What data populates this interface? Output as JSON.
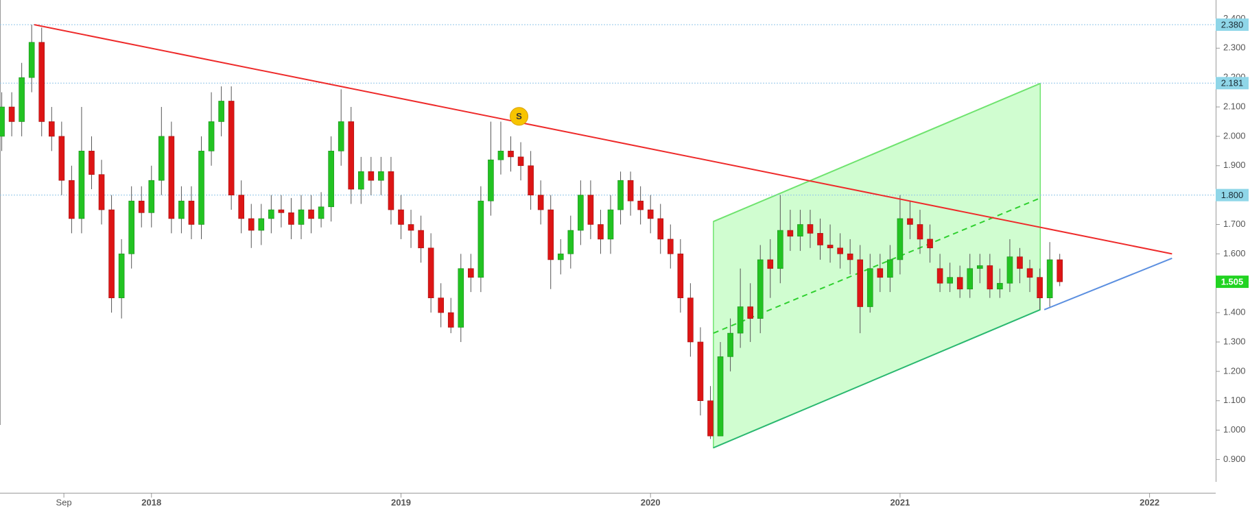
{
  "chart_data": {
    "type": "candlestick",
    "up_color": "#22c322",
    "down_color": "#dd1515",
    "xlim": [
      2017.393,
      2022.265
    ],
    "ylim": [
      0.824,
      2.464
    ],
    "xticks": [
      {
        "value": 2017.649,
        "label": "Sep"
      },
      2018,
      2019,
      2020,
      2021,
      2022
    ],
    "yticks": [
      {
        "value": 0.9,
        "label": "0.900"
      },
      {
        "value": 1.0,
        "label": "1.000"
      },
      {
        "value": 1.1,
        "label": "1.100"
      },
      {
        "value": 1.2,
        "label": "1.200"
      },
      {
        "value": 1.3,
        "label": "1.300"
      },
      {
        "value": 1.4,
        "label": "1.400"
      },
      {
        "value": 1.5,
        "label": "1.500"
      },
      {
        "value": 1.6,
        "label": "1.600"
      },
      {
        "value": 1.7,
        "label": "1.700"
      },
      {
        "value": 1.8,
        "label": "1.800"
      },
      {
        "value": 1.9,
        "label": "1.900"
      },
      {
        "value": 2.0,
        "label": "2.000"
      },
      {
        "value": 2.1,
        "label": "2.100"
      },
      {
        "value": 2.2,
        "label": "2.200"
      },
      {
        "value": 2.3,
        "label": "2.300"
      },
      {
        "value": 2.4,
        "label": "2.400"
      }
    ],
    "x": [
      2017.4,
      2017.44,
      2017.48,
      2017.52,
      2017.56,
      2017.6,
      2017.64,
      2017.68,
      2017.72,
      2017.76,
      2017.8,
      2017.84,
      2017.88,
      2017.92,
      2017.96,
      2018.0,
      2018.04,
      2018.08,
      2018.12,
      2018.16,
      2018.2,
      2018.24,
      2018.28,
      2018.32,
      2018.36,
      2018.4,
      2018.44,
      2018.48,
      2018.52,
      2018.56,
      2018.6,
      2018.64,
      2018.68,
      2018.72,
      2018.76,
      2018.8,
      2018.84,
      2018.88,
      2018.92,
      2018.96,
      2019.0,
      2019.04,
      2019.08,
      2019.12,
      2019.16,
      2019.2,
      2019.24,
      2019.28,
      2019.32,
      2019.36,
      2019.4,
      2019.44,
      2019.48,
      2019.52,
      2019.56,
      2019.6,
      2019.64,
      2019.68,
      2019.72,
      2019.76,
      2019.8,
      2019.84,
      2019.88,
      2019.92,
      2019.96,
      2020.0,
      2020.04,
      2020.08,
      2020.12,
      2020.16,
      2020.2,
      2020.24,
      2020.28,
      2020.32,
      2020.36,
      2020.4,
      2020.44,
      2020.48,
      2020.52,
      2020.56,
      2020.6,
      2020.64,
      2020.68,
      2020.72,
      2020.76,
      2020.8,
      2020.84,
      2020.88,
      2020.92,
      2020.96,
      2021.0,
      2021.04,
      2021.08,
      2021.12,
      2021.16,
      2021.2,
      2021.24,
      2021.28,
      2021.32,
      2021.36,
      2021.4,
      2021.44,
      2021.48,
      2021.52,
      2021.56,
      2021.6,
      2021.64
    ],
    "open": [
      2.0,
      2.1,
      2.05,
      2.2,
      2.32,
      2.05,
      2.0,
      1.85,
      1.72,
      1.95,
      1.87,
      1.75,
      1.45,
      1.6,
      1.78,
      1.74,
      1.85,
      2.0,
      1.72,
      1.78,
      1.7,
      1.95,
      2.05,
      2.12,
      1.8,
      1.72,
      1.68,
      1.72,
      1.75,
      1.74,
      1.7,
      1.75,
      1.72,
      1.76,
      1.95,
      2.05,
      1.82,
      1.88,
      1.85,
      1.88,
      1.75,
      1.7,
      1.68,
      1.62,
      1.45,
      1.4,
      1.35,
      1.55,
      1.52,
      1.78,
      1.92,
      1.95,
      1.93,
      1.9,
      1.8,
      1.75,
      1.58,
      1.6,
      1.68,
      1.8,
      1.7,
      1.65,
      1.75,
      1.85,
      1.78,
      1.75,
      1.72,
      1.65,
      1.6,
      1.45,
      1.3,
      1.1,
      0.98,
      1.25,
      1.33,
      1.42,
      1.38,
      1.58,
      1.55,
      1.68,
      1.66,
      1.7,
      1.67,
      1.63,
      1.62,
      1.6,
      1.58,
      1.42,
      1.55,
      1.52,
      1.58,
      1.72,
      1.7,
      1.65,
      1.55,
      1.5,
      1.52,
      1.48,
      1.55,
      1.56,
      1.48,
      1.5,
      1.59,
      1.55,
      1.52,
      1.45,
      1.58
    ],
    "high": [
      2.15,
      2.15,
      2.25,
      2.38,
      2.37,
      2.1,
      2.05,
      1.9,
      2.1,
      2.0,
      1.92,
      1.8,
      1.65,
      1.83,
      1.83,
      1.9,
      2.1,
      2.05,
      1.83,
      1.83,
      2.0,
      2.15,
      2.17,
      2.17,
      1.85,
      1.77,
      1.77,
      1.8,
      1.8,
      1.79,
      1.8,
      1.8,
      1.81,
      2.0,
      2.16,
      2.1,
      1.93,
      1.93,
      1.93,
      1.93,
      1.8,
      1.75,
      1.73,
      1.67,
      1.5,
      1.45,
      1.6,
      1.6,
      1.83,
      2.05,
      2.05,
      2.0,
      1.98,
      1.95,
      1.85,
      1.8,
      1.65,
      1.73,
      1.85,
      1.85,
      1.75,
      1.8,
      1.88,
      1.88,
      1.83,
      1.8,
      1.77,
      1.7,
      1.65,
      1.5,
      1.35,
      1.15,
      1.3,
      1.38,
      1.55,
      1.5,
      1.63,
      1.65,
      1.8,
      1.75,
      1.75,
      1.75,
      1.72,
      1.7,
      1.67,
      1.65,
      1.63,
      1.6,
      1.6,
      1.63,
      1.8,
      1.78,
      1.75,
      1.7,
      1.6,
      1.57,
      1.56,
      1.6,
      1.6,
      1.6,
      1.55,
      1.65,
      1.62,
      1.58,
      1.55,
      1.64,
      1.6
    ],
    "low": [
      1.95,
      2.0,
      2.0,
      2.15,
      2.0,
      1.95,
      1.8,
      1.67,
      1.67,
      1.82,
      1.7,
      1.4,
      1.38,
      1.55,
      1.69,
      1.69,
      1.8,
      1.67,
      1.67,
      1.65,
      1.65,
      1.9,
      2.0,
      1.75,
      1.67,
      1.62,
      1.63,
      1.67,
      1.69,
      1.65,
      1.65,
      1.67,
      1.69,
      1.71,
      1.9,
      1.77,
      1.77,
      1.8,
      1.8,
      1.7,
      1.65,
      1.62,
      1.57,
      1.4,
      1.35,
      1.33,
      1.3,
      1.47,
      1.47,
      1.73,
      1.87,
      1.88,
      1.85,
      1.75,
      1.7,
      1.48,
      1.53,
      1.55,
      1.63,
      1.65,
      1.6,
      1.6,
      1.7,
      1.73,
      1.7,
      1.67,
      1.6,
      1.55,
      1.4,
      1.25,
      1.05,
      0.97,
      0.98,
      1.2,
      1.28,
      1.3,
      1.33,
      1.45,
      1.5,
      1.61,
      1.61,
      1.62,
      1.58,
      1.57,
      1.55,
      1.53,
      1.33,
      1.4,
      1.47,
      1.47,
      1.53,
      1.65,
      1.6,
      1.57,
      1.47,
      1.47,
      1.45,
      1.45,
      1.5,
      1.45,
      1.45,
      1.47,
      1.5,
      1.47,
      1.41,
      1.42,
      1.49
    ],
    "close": [
      2.1,
      2.05,
      2.2,
      2.32,
      2.05,
      2.0,
      1.85,
      1.72,
      1.95,
      1.87,
      1.75,
      1.45,
      1.6,
      1.78,
      1.74,
      1.85,
      2.0,
      1.72,
      1.78,
      1.7,
      1.95,
      2.05,
      2.12,
      1.8,
      1.72,
      1.68,
      1.72,
      1.75,
      1.74,
      1.7,
      1.75,
      1.72,
      1.76,
      1.95,
      2.05,
      1.82,
      1.88,
      1.85,
      1.88,
      1.75,
      1.7,
      1.68,
      1.62,
      1.45,
      1.4,
      1.35,
      1.55,
      1.52,
      1.78,
      1.92,
      1.95,
      1.93,
      1.9,
      1.8,
      1.75,
      1.58,
      1.6,
      1.68,
      1.8,
      1.7,
      1.65,
      1.75,
      1.85,
      1.78,
      1.75,
      1.72,
      1.65,
      1.6,
      1.45,
      1.3,
      1.1,
      0.98,
      1.25,
      1.33,
      1.42,
      1.38,
      1.58,
      1.55,
      1.68,
      1.66,
      1.7,
      1.67,
      1.63,
      1.62,
      1.6,
      1.58,
      1.42,
      1.55,
      1.52,
      1.58,
      1.72,
      1.7,
      1.65,
      1.62,
      1.5,
      1.52,
      1.48,
      1.55,
      1.56,
      1.48,
      1.5,
      1.59,
      1.55,
      1.52,
      1.45,
      1.58,
      1.505
    ],
    "price_labels": [
      {
        "value": 2.38,
        "label": "2.380",
        "color": "#8fd6e8",
        "text_color": "#1a2a33",
        "dotted": true
      },
      {
        "value": 2.181,
        "label": "2.181",
        "color": "#8fd6e8",
        "text_color": "#1a2a33",
        "dotted": true
      },
      {
        "value": 1.8,
        "label": "1.800",
        "color": "#8fd6e8",
        "text_color": "#1a2a33",
        "dotted": true
      },
      {
        "value": 1.505,
        "label": "1.505",
        "color": "#22d322",
        "text_color": "#ffffff",
        "dotted": false
      }
    ],
    "trendlines": [
      {
        "color": "#ee2a2a",
        "x": [
          2017.53,
          2022.09
        ],
        "y": [
          2.38,
          1.6
        ]
      },
      {
        "color": "#5b8fe0",
        "x": [
          2021.578,
          2022.09
        ],
        "y": [
          1.41,
          1.585
        ]
      }
    ],
    "channel": {
      "line_color": "#6fe36f",
      "fill": "#c8fdc8",
      "base_color": "#2ab870",
      "x": [
        2020.252,
        2021.562
      ],
      "lower": [
        0.94,
        1.41
      ],
      "upper": [
        1.71,
        2.18
      ],
      "mid": [
        1.33,
        1.79
      ]
    },
    "marker": {
      "x": 2019.473,
      "y": 2.068,
      "label": "S",
      "color": "#f7c400"
    }
  }
}
